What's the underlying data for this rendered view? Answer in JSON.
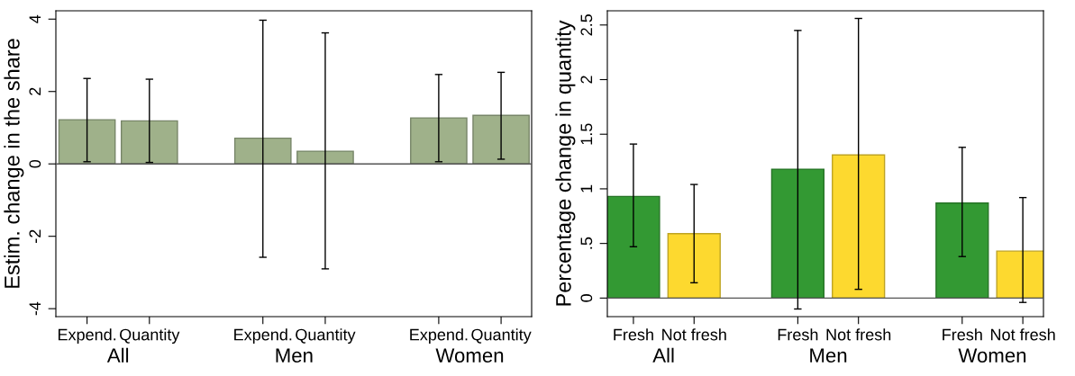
{
  "chart_data": [
    {
      "type": "bar",
      "ylabel": "Estim. change in the share",
      "categories": [
        "Expend.",
        "Quantity",
        "Expend.",
        "Quantity",
        "Expend.",
        "Quantity"
      ],
      "series": [
        {
          "color": "#9fb18a",
          "values": [
            1.22,
            1.19,
            0.71,
            0.35,
            1.27,
            1.34
          ],
          "errors": [
            [
              0.06,
              2.36
            ],
            [
              0.04,
              2.34
            ],
            [
              -2.58,
              3.97
            ],
            [
              -2.9,
              3.62
            ],
            [
              0.06,
              2.47
            ],
            [
              0.13,
              2.53
            ]
          ]
        }
      ],
      "ylim": [
        -4.22,
        4.23
      ],
      "yticks": [
        -4,
        -2,
        0,
        2,
        4
      ],
      "ref_lines": [
        {
          "axis": "y",
          "value": 0
        }
      ],
      "annotations": [
        "All",
        "Men",
        "Women"
      ],
      "grid": false,
      "legend": false
    },
    {
      "type": "bar",
      "ylabel": "Percentage change in quantity",
      "categories": [
        "Fresh",
        "Not fresh",
        "Fresh",
        "Not fresh",
        "Fresh",
        "Not fresh"
      ],
      "series": [
        {
          "colors": [
            "#339933",
            "#fdd92f",
            "#339933",
            "#fdd92f",
            "#339933",
            "#fdd92f"
          ],
          "values": [
            0.93,
            0.59,
            1.18,
            1.31,
            0.87,
            0.43
          ],
          "errors": [
            [
              0.47,
              1.41
            ],
            [
              0.14,
              1.04
            ],
            [
              -0.1,
              2.45
            ],
            [
              0.08,
              2.56
            ],
            [
              0.38,
              1.38
            ],
            [
              -0.04,
              0.92
            ]
          ]
        }
      ],
      "ylim": [
        -0.17,
        2.63
      ],
      "yticks": [
        0,
        {
          "value": 0.5,
          "label": ".5"
        },
        1,
        1.5,
        2,
        2.5
      ],
      "ref_lines": [
        {
          "axis": "y",
          "value": 0
        }
      ],
      "annotations": [
        "All",
        "Men",
        "Women"
      ],
      "grid": false,
      "legend": false
    }
  ]
}
